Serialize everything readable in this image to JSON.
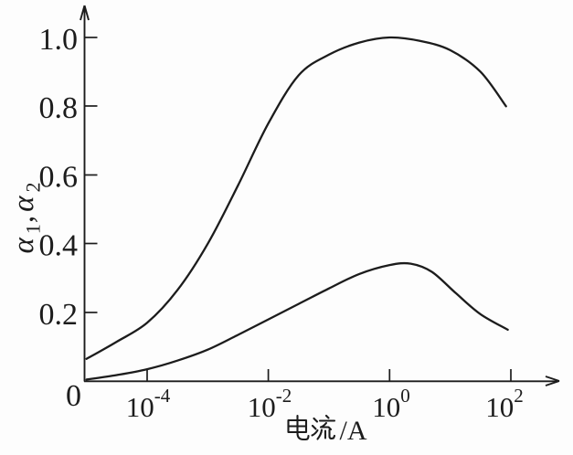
{
  "figure": {
    "background_color": "#fdfdfd",
    "ink_color": "#1c1c1c"
  },
  "y_axis": {
    "label": "α1,α2",
    "label_parts": {
      "alpha1": "α",
      "sub1": "1",
      "comma": ",",
      "alpha2": "α",
      "sub2": "2"
    },
    "tick_labels": [
      "1.0",
      "0.8",
      "0.6",
      "0.4",
      "0.2"
    ],
    "origin_label": "0"
  },
  "x_axis": {
    "label": "电流/A",
    "cjk_text": "电流",
    "unit_text": "/A",
    "tick_labels": [
      {
        "base": "10",
        "exp": "-4"
      },
      {
        "base": "10",
        "exp": "-2"
      },
      {
        "base": "10",
        "exp": "0"
      },
      {
        "base": "10",
        "exp": "2"
      }
    ]
  },
  "chart_data": {
    "type": "line",
    "title": "",
    "xlabel": "电流/A",
    "ylabel": "α1,α2",
    "x_scale": "log10",
    "x_range_log10": [
      -5,
      2.05
    ],
    "ylim": [
      0,
      1.08
    ],
    "yticks": [
      0.2,
      0.4,
      0.6,
      0.8,
      1.0
    ],
    "xticks": [
      0.0001,
      0.01,
      1,
      100
    ],
    "grid": false,
    "legend": "none",
    "series": [
      {
        "name": "α1",
        "points_log10x_y": [
          [
            -5.0,
            0.065
          ],
          [
            -4.5,
            0.115
          ],
          [
            -4.0,
            0.17
          ],
          [
            -3.5,
            0.265
          ],
          [
            -3.0,
            0.4
          ],
          [
            -2.5,
            0.57
          ],
          [
            -2.0,
            0.75
          ],
          [
            -1.5,
            0.89
          ],
          [
            -1.0,
            0.95
          ],
          [
            -0.5,
            0.985
          ],
          [
            0.0,
            1.0
          ],
          [
            0.5,
            0.99
          ],
          [
            1.0,
            0.963
          ],
          [
            1.5,
            0.9
          ],
          [
            1.92,
            0.8
          ]
        ]
      },
      {
        "name": "α2",
        "points_log10x_y": [
          [
            -5.0,
            0.005
          ],
          [
            -4.5,
            0.018
          ],
          [
            -4.0,
            0.035
          ],
          [
            -3.5,
            0.06
          ],
          [
            -3.0,
            0.092
          ],
          [
            -2.5,
            0.135
          ],
          [
            -2.0,
            0.18
          ],
          [
            -1.5,
            0.225
          ],
          [
            -1.0,
            0.27
          ],
          [
            -0.5,
            0.312
          ],
          [
            0.0,
            0.338
          ],
          [
            0.35,
            0.342
          ],
          [
            0.7,
            0.318
          ],
          [
            1.1,
            0.255
          ],
          [
            1.5,
            0.195
          ],
          [
            1.95,
            0.15
          ]
        ]
      }
    ]
  }
}
